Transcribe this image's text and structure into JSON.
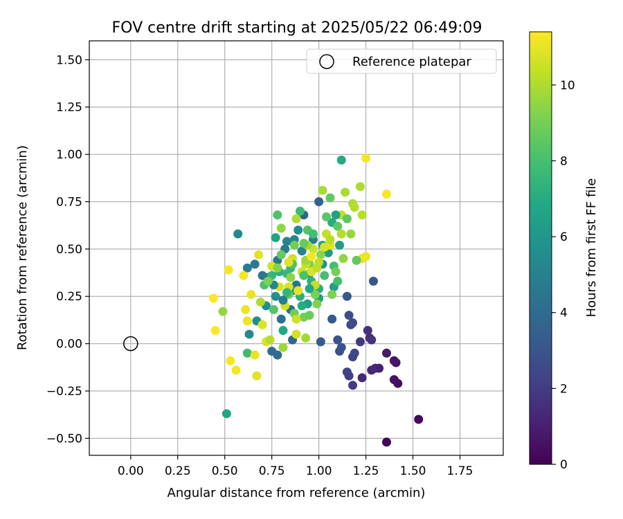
{
  "chart_data": {
    "type": "scatter",
    "title": "FOV centre drift starting at 2025/05/22 06:49:09",
    "xlabel": "Angular distance from reference (arcmin)",
    "ylabel": "Rotation from reference (arcmin)",
    "xlim": [
      -0.22,
      1.98
    ],
    "ylim": [
      -0.59,
      1.6
    ],
    "xticks": [
      "0.00",
      "0.25",
      "0.50",
      "0.75",
      "1.00",
      "1.25",
      "1.50",
      "1.75"
    ],
    "yticks": [
      "−0.50",
      "−0.25",
      "0.00",
      "0.25",
      "0.50",
      "0.75",
      "1.00",
      "1.25",
      "1.50"
    ],
    "grid": true,
    "legend": {
      "placement": "top-right",
      "label": "Reference platepar"
    },
    "reference_point": {
      "x": 0.0,
      "y": 0.0
    },
    "colorbar": {
      "label": "Hours from first FF file",
      "range": [
        0,
        11.4
      ],
      "ticks": [
        "0",
        "2",
        "4",
        "6",
        "8",
        "10"
      ],
      "colormap": "viridis"
    },
    "points": [
      [
        1.36,
        -0.52,
        0.1
      ],
      [
        1.53,
        -0.4,
        0.3
      ],
      [
        1.42,
        -0.21,
        0.4
      ],
      [
        1.4,
        -0.19,
        0.5
      ],
      [
        1.41,
        -0.1,
        0.6
      ],
      [
        1.4,
        -0.09,
        0.7
      ],
      [
        1.36,
        -0.05,
        0.8
      ],
      [
        1.32,
        -0.13,
        1.0
      ],
      [
        1.3,
        -0.13,
        1.1
      ],
      [
        1.28,
        -0.14,
        1.3
      ],
      [
        1.23,
        -0.18,
        1.4
      ],
      [
        1.27,
        0.03,
        1.5
      ],
      [
        1.26,
        0.07,
        1.6
      ],
      [
        1.28,
        0.02,
        1.7
      ],
      [
        1.22,
        0.01,
        1.9
      ],
      [
        1.18,
        -0.22,
        2.0
      ],
      [
        1.16,
        -0.17,
        2.1
      ],
      [
        1.15,
        -0.15,
        2.2
      ],
      [
        1.18,
        -0.07,
        2.3
      ],
      [
        1.19,
        -0.05,
        2.4
      ],
      [
        1.17,
        0.1,
        2.5
      ],
      [
        1.18,
        0.11,
        2.6
      ],
      [
        1.16,
        0.15,
        2.7
      ],
      [
        1.11,
        -0.04,
        2.8
      ],
      [
        1.1,
        0.02,
        2.9
      ],
      [
        1.12,
        -0.02,
        3.0
      ],
      [
        1.29,
        0.33,
        3.0
      ],
      [
        1.15,
        0.25,
        3.1
      ],
      [
        1.07,
        0.13,
        3.2
      ],
      [
        1.01,
        0.01,
        3.3
      ],
      [
        1.0,
        0.75,
        3.5
      ],
      [
        0.92,
        0.68,
        3.7
      ],
      [
        0.86,
        0.02,
        3.8
      ],
      [
        0.78,
        -0.06,
        3.9
      ],
      [
        0.75,
        -0.04,
        4.0
      ],
      [
        0.8,
        0.13,
        4.1
      ],
      [
        0.85,
        0.18,
        4.2
      ],
      [
        0.88,
        0.31,
        4.3
      ],
      [
        0.73,
        0.35,
        4.4
      ],
      [
        0.78,
        0.44,
        4.5
      ],
      [
        0.66,
        0.42,
        4.6
      ],
      [
        0.82,
        0.5,
        4.7
      ],
      [
        0.62,
        0.4,
        4.8
      ],
      [
        0.97,
        0.55,
        4.9
      ],
      [
        0.91,
        0.49,
        5.0
      ],
      [
        0.83,
        0.54,
        5.1
      ],
      [
        0.87,
        0.55,
        5.2
      ],
      [
        0.57,
        0.58,
        5.3
      ],
      [
        0.63,
        0.05,
        5.4
      ],
      [
        0.67,
        0.12,
        5.5
      ],
      [
        0.72,
        0.2,
        5.6
      ],
      [
        0.77,
        0.25,
        5.7
      ],
      [
        0.86,
        0.28,
        5.8
      ],
      [
        0.95,
        0.37,
        5.9
      ],
      [
        1.02,
        0.42,
        6.0
      ],
      [
        1.05,
        0.48,
        6.1
      ],
      [
        1.11,
        0.52,
        6.2
      ],
      [
        1.08,
        0.3,
        6.3
      ],
      [
        1.0,
        0.24,
        6.4
      ],
      [
        0.94,
        0.21,
        6.5
      ],
      [
        0.77,
        0.56,
        6.6
      ],
      [
        0.51,
        -0.37,
        6.7
      ],
      [
        0.81,
        0.07,
        6.8
      ],
      [
        1.12,
        0.97,
        6.9
      ],
      [
        1.07,
        0.64,
        7.0
      ],
      [
        1.0,
        0.29,
        7.1
      ],
      [
        0.9,
        0.25,
        7.2
      ],
      [
        0.96,
        0.33,
        7.3
      ],
      [
        0.85,
        0.4,
        7.4
      ],
      [
        0.75,
        0.36,
        7.5
      ],
      [
        0.83,
        0.37,
        7.6
      ],
      [
        0.9,
        0.7,
        7.7
      ],
      [
        0.62,
        -0.05,
        7.8
      ],
      [
        1.08,
        0.41,
        7.9
      ],
      [
        1.1,
        0.33,
        8.0
      ],
      [
        0.71,
        0.31,
        8.1
      ],
      [
        0.78,
        0.68,
        8.2
      ],
      [
        0.94,
        0.6,
        8.3
      ],
      [
        1.04,
        0.67,
        8.4
      ],
      [
        1.1,
        0.62,
        8.5
      ],
      [
        1.06,
        0.77,
        8.6
      ],
      [
        0.8,
        0.47,
        8.7
      ],
      [
        0.84,
        0.26,
        8.8
      ],
      [
        0.87,
        0.16,
        8.9
      ],
      [
        0.92,
        0.14,
        9.0
      ],
      [
        0.98,
        0.26,
        9.1
      ],
      [
        1.07,
        0.26,
        9.2
      ],
      [
        0.95,
        0.42,
        9.3
      ],
      [
        1.01,
        0.47,
        9.4
      ],
      [
        1.13,
        0.45,
        9.5
      ],
      [
        1.17,
        0.58,
        9.6
      ],
      [
        0.81,
        -0.02,
        9.7
      ],
      [
        0.93,
        0.03,
        9.8
      ],
      [
        1.02,
        0.81,
        9.9
      ],
      [
        1.14,
        0.8,
        9.9
      ],
      [
        1.18,
        0.74,
        10.0
      ],
      [
        1.22,
        0.83,
        10.0
      ],
      [
        1.19,
        0.72,
        10.1
      ],
      [
        1.23,
        0.68,
        10.2
      ],
      [
        1.12,
        0.68,
        10.3
      ],
      [
        1.04,
        0.58,
        10.4
      ],
      [
        0.97,
        0.5,
        10.5
      ],
      [
        0.88,
        0.05,
        10.6
      ],
      [
        0.84,
        0.3,
        10.7
      ],
      [
        0.96,
        0.38,
        10.8
      ],
      [
        1.06,
        0.52,
        10.9
      ],
      [
        1.23,
        0.45,
        11.0
      ],
      [
        1.25,
        0.46,
        11.1
      ],
      [
        1.25,
        0.98,
        11.2
      ],
      [
        1.36,
        0.79,
        11.3
      ],
      [
        0.45,
        0.07,
        11.4
      ],
      [
        0.44,
        0.24,
        11.4
      ],
      [
        0.52,
        0.39,
        11.3
      ],
      [
        0.53,
        -0.09,
        11.3
      ],
      [
        0.56,
        -0.14,
        11.2
      ],
      [
        0.6,
        0.36,
        11.2
      ],
      [
        0.61,
        0.18,
        11.1
      ],
      [
        0.62,
        0.12,
        11.1
      ],
      [
        0.64,
        0.26,
        11.0
      ],
      [
        0.66,
        -0.06,
        11.0
      ],
      [
        0.67,
        -0.17,
        10.9
      ],
      [
        0.68,
        0.47,
        10.9
      ],
      [
        0.7,
        0.1,
        10.8
      ],
      [
        0.72,
        0.01,
        10.8
      ],
      [
        0.75,
        0.41,
        10.7
      ],
      [
        0.79,
        0.3,
        10.7
      ],
      [
        0.82,
        0.2,
        10.6
      ],
      [
        0.86,
        0.45,
        10.6
      ],
      [
        0.88,
        0.13,
        10.5
      ],
      [
        0.91,
        0.38,
        10.5
      ],
      [
        0.93,
        0.42,
        10.4
      ],
      [
        0.98,
        0.31,
        10.4
      ],
      [
        1.0,
        0.43,
        10.3
      ],
      [
        1.06,
        0.55,
        10.2
      ],
      [
        1.12,
        0.58,
        10.1
      ],
      [
        0.74,
        0.02,
        10.1
      ],
      [
        0.69,
        0.22,
        10.0
      ],
      [
        0.49,
        0.17,
        9.6
      ],
      [
        0.88,
        0.66,
        10.0
      ],
      [
        0.94,
        0.52,
        9.8
      ],
      [
        0.8,
        0.61,
        9.5
      ],
      [
        0.85,
        0.35,
        9.4
      ],
      [
        0.99,
        0.21,
        9.2
      ],
      [
        1.09,
        0.38,
        9.0
      ],
      [
        0.95,
        0.15,
        8.8
      ],
      [
        1.2,
        0.44,
        8.6
      ],
      [
        1.15,
        0.66,
        8.5
      ],
      [
        0.76,
        0.18,
        8.3
      ],
      [
        0.86,
        0.42,
        8.2
      ],
      [
        0.92,
        0.36,
        8.1
      ],
      [
        1.03,
        0.36,
        8.0
      ],
      [
        0.97,
        0.58,
        7.9
      ],
      [
        0.83,
        0.27,
        7.5
      ],
      [
        0.79,
        0.38,
        7.2
      ],
      [
        0.91,
        0.2,
        7.0
      ],
      [
        0.95,
        0.29,
        6.8
      ],
      [
        1.02,
        0.52,
        6.6
      ],
      [
        1.09,
        0.68,
        6.5
      ],
      [
        0.89,
        0.6,
        5.6
      ],
      [
        0.76,
        0.31,
        5.2
      ],
      [
        0.81,
        0.23,
        4.8
      ],
      [
        0.7,
        0.36,
        4.5
      ],
      [
        0.93,
        0.44,
        9.7
      ],
      [
        0.99,
        0.4,
        10.3
      ],
      [
        0.84,
        0.43,
        10.9
      ],
      [
        0.89,
        0.28,
        11.0
      ],
      [
        0.96,
        0.46,
        11.2
      ],
      [
        1.03,
        0.51,
        10.8
      ],
      [
        0.78,
        0.4,
        9.3
      ],
      [
        0.73,
        0.33,
        9.1
      ],
      [
        0.87,
        0.52,
        8.9
      ],
      [
        0.92,
        0.53,
        8.7
      ]
    ]
  }
}
